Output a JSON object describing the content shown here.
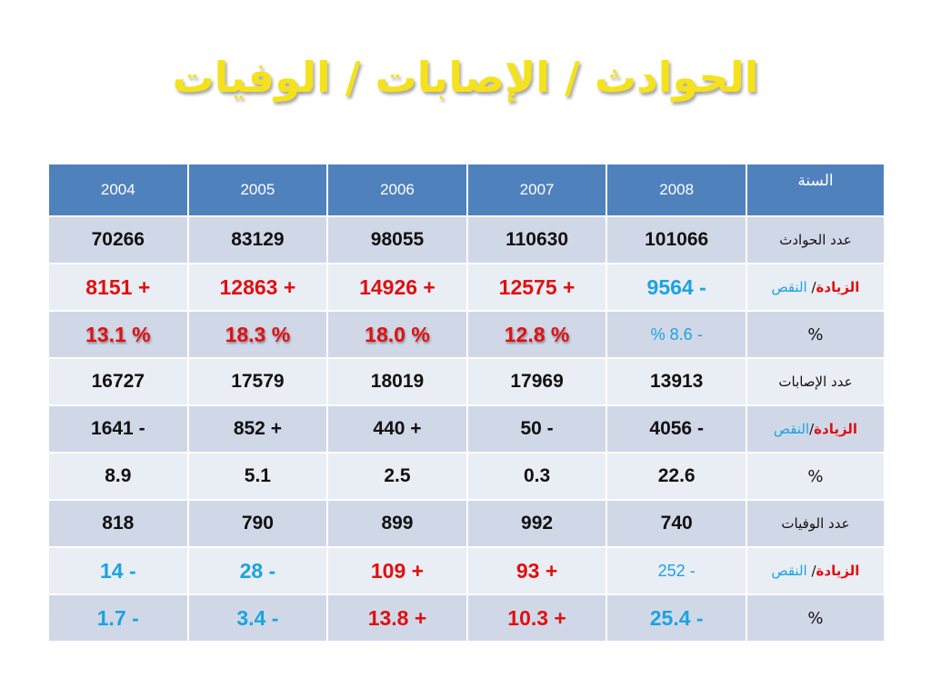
{
  "title": "الحوادث / الإصابات / الوفيات",
  "colors": {
    "header_bg": "#4f81bd",
    "band_a": "#d0d8e8",
    "band_b": "#e9edf4",
    "increase": "#e01010",
    "decrease": "#1ba3e0",
    "title": "#f5e21c"
  },
  "header": {
    "label": "السنة",
    "years": [
      "2008",
      "2007",
      "2006",
      "2005",
      "2004"
    ]
  },
  "rows": [
    {
      "label": "عدد الحوادث",
      "values": [
        "101066",
        "110630",
        "98055",
        "83129",
        "70266"
      ]
    },
    {
      "label_increase": "الزيادة",
      "label_sep": "/ ",
      "label_decrease": "النقص",
      "values": [
        "- 9564",
        "+ 12575",
        "+ 14926",
        "+ 12863",
        "+ 8151"
      ]
    },
    {
      "label": "%",
      "values": [
        "- 8.6 %",
        "% 12.8",
        "% 18.0",
        "% 18.3",
        "% 13.1"
      ]
    },
    {
      "label": "عدد الإصابات",
      "values": [
        "13913",
        "17969",
        "18019",
        "17579",
        "16727"
      ]
    },
    {
      "label_increase": "الزيادة",
      "label_sep": "/",
      "label_decrease": "النقص",
      "values": [
        "- 4056",
        "- 50",
        "+ 440",
        "+ 852",
        "- 1641"
      ]
    },
    {
      "label": "%",
      "values": [
        "22.6",
        "0.3",
        "2.5",
        "5.1",
        "8.9"
      ]
    },
    {
      "label": "عدد الوفيات",
      "values": [
        "740",
        "992",
        "899",
        "790",
        "818"
      ]
    },
    {
      "label_increase": "الزيادة",
      "label_sep": "/ ",
      "label_decrease": "النقص",
      "values": [
        "- 252",
        "+ 93",
        "+ 109",
        "- 28",
        "- 14"
      ]
    },
    {
      "label": "%",
      "values": [
        "- 25.4",
        "+ 10.3",
        "+ 13.8",
        "- 3.4",
        "- 1.7"
      ]
    }
  ]
}
